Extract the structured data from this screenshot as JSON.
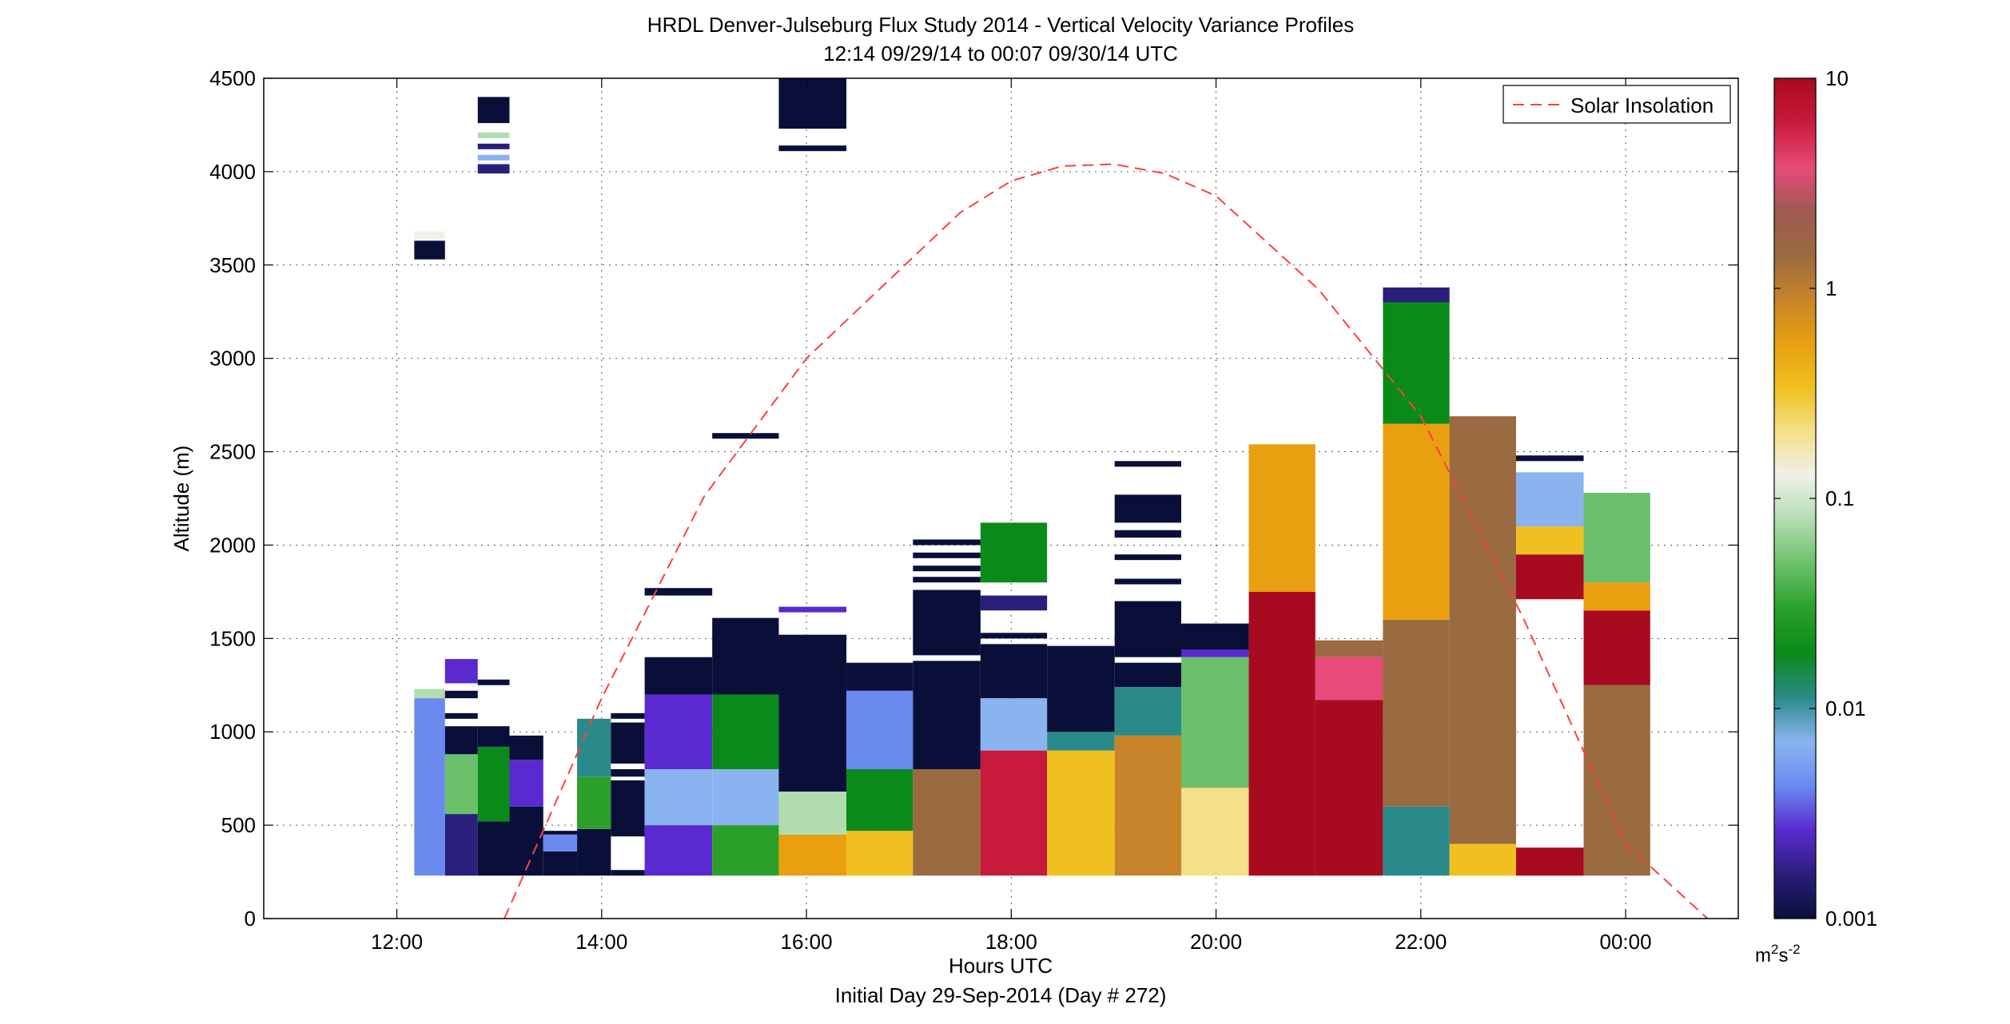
{
  "chart_data": {
    "type": "heatmap",
    "title": "HRDL Denver-Julseburg Flux Study 2014 - Vertical Velocity Variance Profiles",
    "subtitle": "12:14 09/29/14 to 00:07 09/30/14  UTC",
    "xlabel": "Hours UTC",
    "xlabel2": "Initial Day 29-Sep-2014 (Day # 272)",
    "ylabel": "Altitude (m)",
    "xlim": [
      10.7,
      25.1
    ],
    "ylim": [
      0,
      4500
    ],
    "x_ticks": [
      12,
      14,
      16,
      18,
      20,
      22,
      24
    ],
    "x_tick_labels": [
      "12:00",
      "14:00",
      "16:00",
      "18:00",
      "20:00",
      "22:00",
      "00:00"
    ],
    "y_ticks": [
      0,
      500,
      1000,
      1500,
      2000,
      2500,
      3000,
      3500,
      4000,
      4500
    ],
    "y_tick_labels": [
      "0",
      "500",
      "1000",
      "1500",
      "2000",
      "2500",
      "3000",
      "3500",
      "4000",
      "4500"
    ],
    "grid": true,
    "legend": {
      "position": "top-right",
      "entries": [
        {
          "label": "Solar Insolation",
          "color": "#ff4040",
          "style": "dashed"
        }
      ]
    },
    "colorbar": {
      "scale": "log",
      "min": 0.001,
      "max": 10,
      "ticks": [
        0.001,
        0.01,
        0.1,
        1,
        10
      ],
      "tick_labels": [
        "0.001",
        "0.01",
        "0.1",
        "1",
        "10"
      ],
      "units_label": "m",
      "units_sup1": "2",
      "units_mid": "s",
      "units_sup2": "-2",
      "colors": [
        "#0a0f3a",
        "#2a1f7a",
        "#5a2ad0",
        "#6a8af0",
        "#8ab4f0",
        "#2a8a8a",
        "#0a8a1a",
        "#2aa02a",
        "#6ac06a",
        "#b0dcb0",
        "#f0f0e8",
        "#f5e08a",
        "#f0c020",
        "#e8a010",
        "#c8842a",
        "#9a6a40",
        "#a05a50",
        "#e84a7a",
        "#c81a3a",
        "#a80a20"
      ]
    },
    "series": [
      {
        "name": "Solar Insolation",
        "x": [
          13.05,
          14.0,
          15.0,
          16.0,
          17.0,
          17.5,
          18.0,
          18.5,
          19.0,
          19.5,
          20.0,
          21.0,
          22.0,
          23.0,
          24.0,
          24.8
        ],
        "y": [
          0,
          1180,
          2260,
          3000,
          3520,
          3780,
          3950,
          4030,
          4040,
          3990,
          3870,
          3370,
          2690,
          1610,
          400,
          0
        ]
      }
    ],
    "columns": [
      {
        "x0": 12.17,
        "x1": 12.47,
        "segments": [
          [
            230,
            1180,
            0.004
          ],
          [
            1180,
            1230,
            0.08
          ],
          [
            3530,
            3630,
            0.001
          ],
          [
            3640,
            3680,
            0.1
          ]
        ]
      },
      {
        "x0": 12.47,
        "x1": 12.79,
        "segments": [
          [
            230,
            560,
            0.002
          ],
          [
            560,
            880,
            0.04
          ],
          [
            880,
            1030,
            0.001
          ],
          [
            1070,
            1100,
            0.001
          ],
          [
            1180,
            1220,
            0.001
          ],
          [
            1260,
            1390,
            0.003
          ]
        ]
      },
      {
        "x0": 12.79,
        "x1": 13.1,
        "segments": [
          [
            230,
            520,
            0.001
          ],
          [
            520,
            920,
            0.02
          ],
          [
            920,
            1030,
            0.001
          ],
          [
            1250,
            1280,
            0.001
          ],
          [
            3990,
            4040,
            0.002
          ],
          [
            4060,
            4090,
            0.006
          ],
          [
            4120,
            4150,
            0.002
          ],
          [
            4180,
            4210,
            0.07
          ],
          [
            4260,
            4400,
            0.001
          ]
        ]
      },
      {
        "x0": 13.1,
        "x1": 13.43,
        "segments": [
          [
            230,
            600,
            0.001
          ],
          [
            600,
            850,
            0.003
          ],
          [
            850,
            980,
            0.001
          ]
        ]
      },
      {
        "x0": 13.43,
        "x1": 13.76,
        "segments": [
          [
            230,
            360,
            0.001
          ],
          [
            360,
            450,
            0.005
          ],
          [
            450,
            470,
            0.001
          ]
        ]
      },
      {
        "x0": 13.76,
        "x1": 14.09,
        "segments": [
          [
            230,
            480,
            0.001
          ],
          [
            480,
            760,
            0.03
          ],
          [
            760,
            1070,
            0.01
          ]
        ]
      },
      {
        "x0": 14.09,
        "x1": 14.42,
        "segments": [
          [
            230,
            260,
            0.001
          ],
          [
            440,
            460,
            0.001
          ],
          [
            450,
            740,
            0.001
          ],
          [
            760,
            800,
            0.001
          ],
          [
            830,
            1050,
            0.001
          ],
          [
            1070,
            1100,
            0.001
          ]
        ]
      },
      {
        "x0": 14.42,
        "x1": 15.08,
        "segments": [
          [
            230,
            500,
            0.003
          ],
          [
            500,
            800,
            0.008
          ],
          [
            800,
            1200,
            0.003
          ],
          [
            1200,
            1400,
            0.001
          ],
          [
            1730,
            1770,
            0.001
          ]
        ]
      },
      {
        "x0": 15.08,
        "x1": 15.73,
        "segments": [
          [
            230,
            500,
            0.03
          ],
          [
            500,
            800,
            0.006
          ],
          [
            800,
            1200,
            0.02
          ],
          [
            1200,
            1610,
            0.001
          ],
          [
            2570,
            2600,
            0.001
          ]
        ]
      },
      {
        "x0": 15.73,
        "x1": 16.39,
        "segments": [
          [
            230,
            450,
            0.5
          ],
          [
            450,
            680,
            0.07
          ],
          [
            680,
            1520,
            0.001
          ],
          [
            1640,
            1670,
            0.003
          ],
          [
            4110,
            4140,
            0.001
          ],
          [
            4230,
            4500,
            0.001
          ]
        ]
      },
      {
        "x0": 16.39,
        "x1": 17.04,
        "segments": [
          [
            230,
            470,
            0.4
          ],
          [
            470,
            800,
            0.015
          ],
          [
            800,
            1220,
            0.004
          ],
          [
            1220,
            1370,
            0.001
          ]
        ]
      },
      {
        "x0": 17.04,
        "x1": 17.7,
        "segments": [
          [
            230,
            800,
            1.2
          ],
          [
            800,
            1380,
            0.001
          ],
          [
            1410,
            1760,
            0.001
          ],
          [
            1800,
            1830,
            0.001
          ],
          [
            1860,
            1890,
            0.001
          ],
          [
            1930,
            1960,
            0.001
          ],
          [
            2000,
            2030,
            0.001
          ]
        ]
      },
      {
        "x0": 17.7,
        "x1": 18.35,
        "segments": [
          [
            230,
            900,
            5
          ],
          [
            900,
            1180,
            0.006
          ],
          [
            1180,
            1470,
            0.001
          ],
          [
            1500,
            1530,
            0.001
          ],
          [
            1650,
            1730,
            0.002
          ],
          [
            1800,
            2120,
            0.02
          ]
        ]
      },
      {
        "x0": 18.35,
        "x1": 19.01,
        "segments": [
          [
            230,
            900,
            0.4
          ],
          [
            900,
            1000,
            0.01
          ],
          [
            1000,
            1460,
            0.001
          ]
        ]
      },
      {
        "x0": 19.01,
        "x1": 19.66,
        "segments": [
          [
            230,
            980,
            0.8
          ],
          [
            980,
            1240,
            0.01
          ],
          [
            1240,
            1370,
            0.001
          ],
          [
            1400,
            1700,
            0.001
          ],
          [
            1790,
            1820,
            0.001
          ],
          [
            1920,
            1950,
            0.001
          ],
          [
            2040,
            2080,
            0.001
          ],
          [
            2120,
            2270,
            0.001
          ],
          [
            2420,
            2450,
            0.001
          ]
        ]
      },
      {
        "x0": 19.66,
        "x1": 20.32,
        "segments": [
          [
            230,
            700,
            0.25
          ],
          [
            700,
            1400,
            0.04
          ],
          [
            1400,
            1440,
            0.003
          ],
          [
            1440,
            1580,
            0.001
          ]
        ]
      },
      {
        "x0": 20.32,
        "x1": 20.97,
        "segments": [
          [
            230,
            1750,
            10
          ],
          [
            1750,
            2540,
            0.6
          ]
        ]
      },
      {
        "x0": 20.97,
        "x1": 21.63,
        "segments": [
          [
            230,
            1170,
            10
          ],
          [
            1170,
            1400,
            3
          ],
          [
            1400,
            1490,
            1.5
          ]
        ]
      },
      {
        "x0": 21.63,
        "x1": 22.28,
        "segments": [
          [
            230,
            600,
            0.01
          ],
          [
            600,
            1600,
            1.5
          ],
          [
            1600,
            2650,
            0.6
          ],
          [
            2650,
            3300,
            0.015
          ],
          [
            3300,
            3380,
            0.002
          ]
        ]
      },
      {
        "x0": 22.28,
        "x1": 22.93,
        "segments": [
          [
            230,
            400,
            0.3
          ],
          [
            400,
            2690,
            1.2
          ]
        ]
      },
      {
        "x0": 22.93,
        "x1": 23.59,
        "segments": [
          [
            230,
            380,
            10
          ],
          [
            1710,
            1950,
            8
          ],
          [
            1950,
            2100,
            0.4
          ],
          [
            2100,
            2390,
            0.006
          ],
          [
            2450,
            2480,
            0.001
          ]
        ]
      },
      {
        "x0": 23.59,
        "x1": 24.24,
        "segments": [
          [
            230,
            1250,
            1.8
          ],
          [
            1250,
            1650,
            8
          ],
          [
            1650,
            1800,
            0.6
          ],
          [
            1800,
            2280,
            0.05
          ]
        ]
      }
    ]
  }
}
